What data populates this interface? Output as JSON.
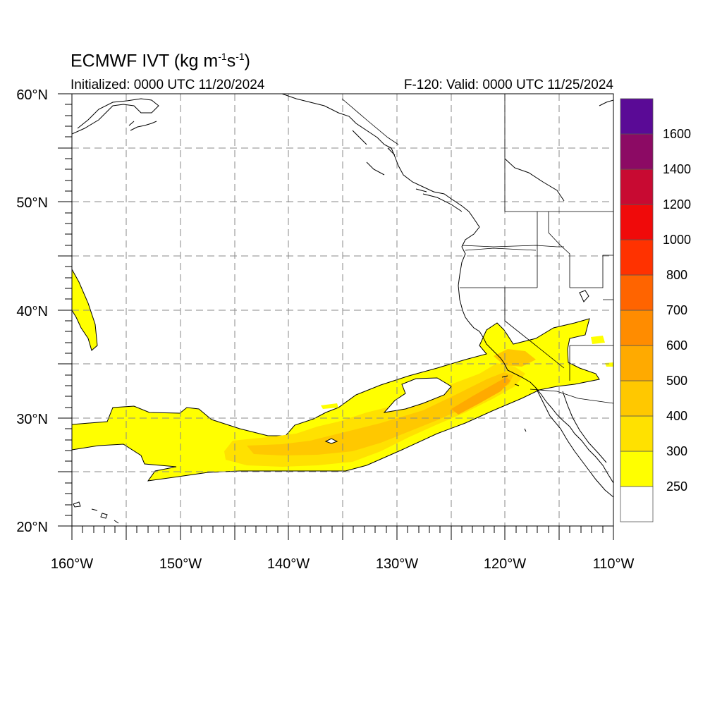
{
  "title": {
    "main": "ECMWF IVT (kg m",
    "sup1": "-1",
    "mid": "s",
    "sup2": "-1",
    "end": ")"
  },
  "initialized": "Initialized: 0000 UTC 11/20/2024",
  "valid": "F-120: Valid: 0000 UTC 11/25/2024",
  "map": {
    "lon_range": [
      -160,
      -110
    ],
    "lat_range": [
      20,
      60
    ],
    "lon_ticks": [
      "160°W",
      "150°W",
      "140°W",
      "130°W",
      "120°W",
      "110°W"
    ],
    "lat_ticks": [
      "20°N",
      "30°N",
      "40°N",
      "50°N",
      "60°N"
    ],
    "grid": "dashed every 5°",
    "field": "Integrated vapor transport; atmospheric river from ~160°W 28°N to southern California coast, peak 500–600 near 121°W 33°N"
  },
  "colorbar": {
    "levels": [
      "250",
      "300",
      "400",
      "500",
      "600",
      "700",
      "800",
      "1000",
      "1200",
      "1400",
      "1600"
    ],
    "colors": [
      "#ffffff",
      "#ffff00",
      "#ffe100",
      "#ffc800",
      "#ffaa00",
      "#ff8c00",
      "#ff6400",
      "#ff3200",
      "#f00a0a",
      "#c80a32",
      "#8c0a64",
      "#5a0a96"
    ]
  }
}
